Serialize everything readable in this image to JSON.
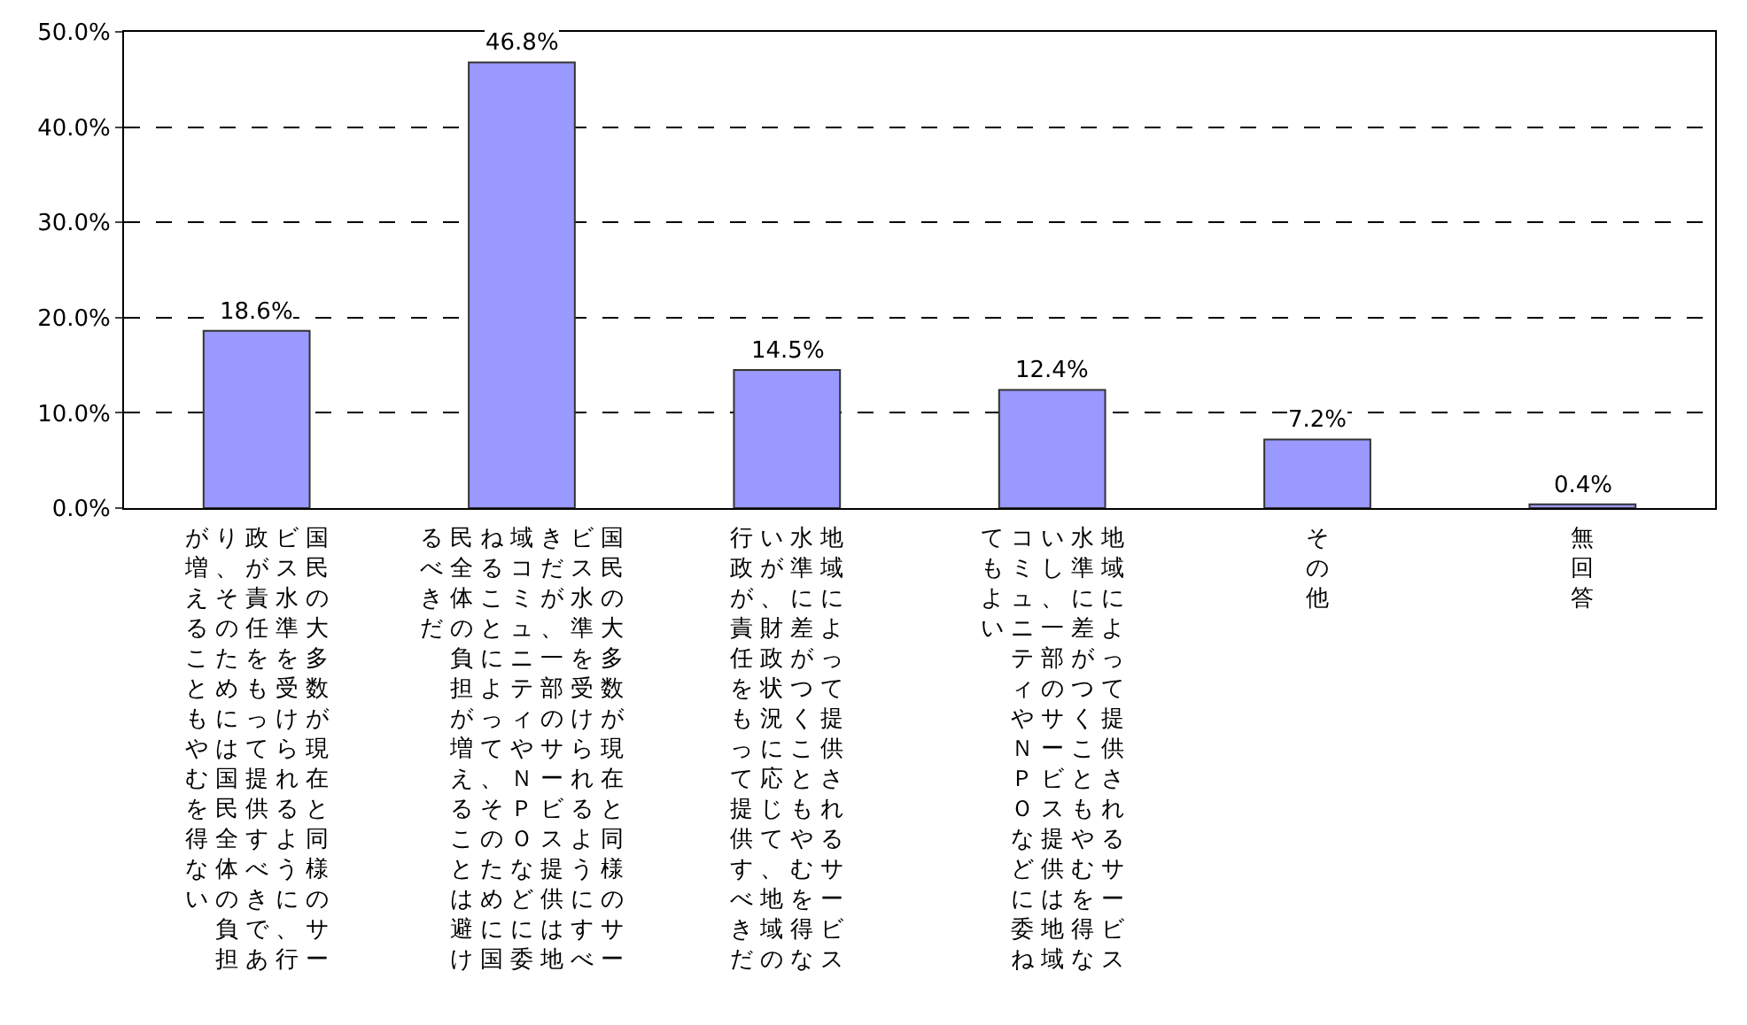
{
  "chart_data": {
    "type": "bar",
    "categories": [
      "国民の大多数が現在と同様のサービス水準を受けられるように、行政が責任をもって提供すべきであり、そのためには国民全体の負担が増えることもやむを得ない",
      "国民の大多数が現在と同様のサービス水準を受けられるようにすべきだが、一部のサービス提供は地域コミュニティやＮＰＯなどに委ねることによって、そのために国民全体の負担が増えることは避けるべきだ",
      "地域によって提供されるサービス水準に差がつくこともやむを得ないが、財政状況に応じて、地域の行政が責任をもって提供すべきだ",
      "地域によって提供されるサービス水準に差がつくこともやむを得ないし、一部のサービス提供は地域コミュニティやＮＰＯなどに委ねてもよい",
      "その他",
      "無回答"
    ],
    "values": [
      18.6,
      46.8,
      14.5,
      12.4,
      7.2,
      0.4
    ],
    "value_labels": [
      "18.6%",
      "46.8%",
      "14.5%",
      "12.4%",
      "7.2%",
      "0.4%"
    ],
    "color": "#9999ff",
    "ylim": [
      0,
      50
    ],
    "yticks": [
      {
        "value": 0,
        "label": "0.0%"
      },
      {
        "value": 10,
        "label": "10.0%"
      },
      {
        "value": 20,
        "label": "20.0%"
      },
      {
        "value": 30,
        "label": "30.0%"
      },
      {
        "value": 40,
        "label": "40.0%"
      },
      {
        "value": 50,
        "label": "50.0%"
      }
    ],
    "grid": "y",
    "line_style": "dashed"
  }
}
